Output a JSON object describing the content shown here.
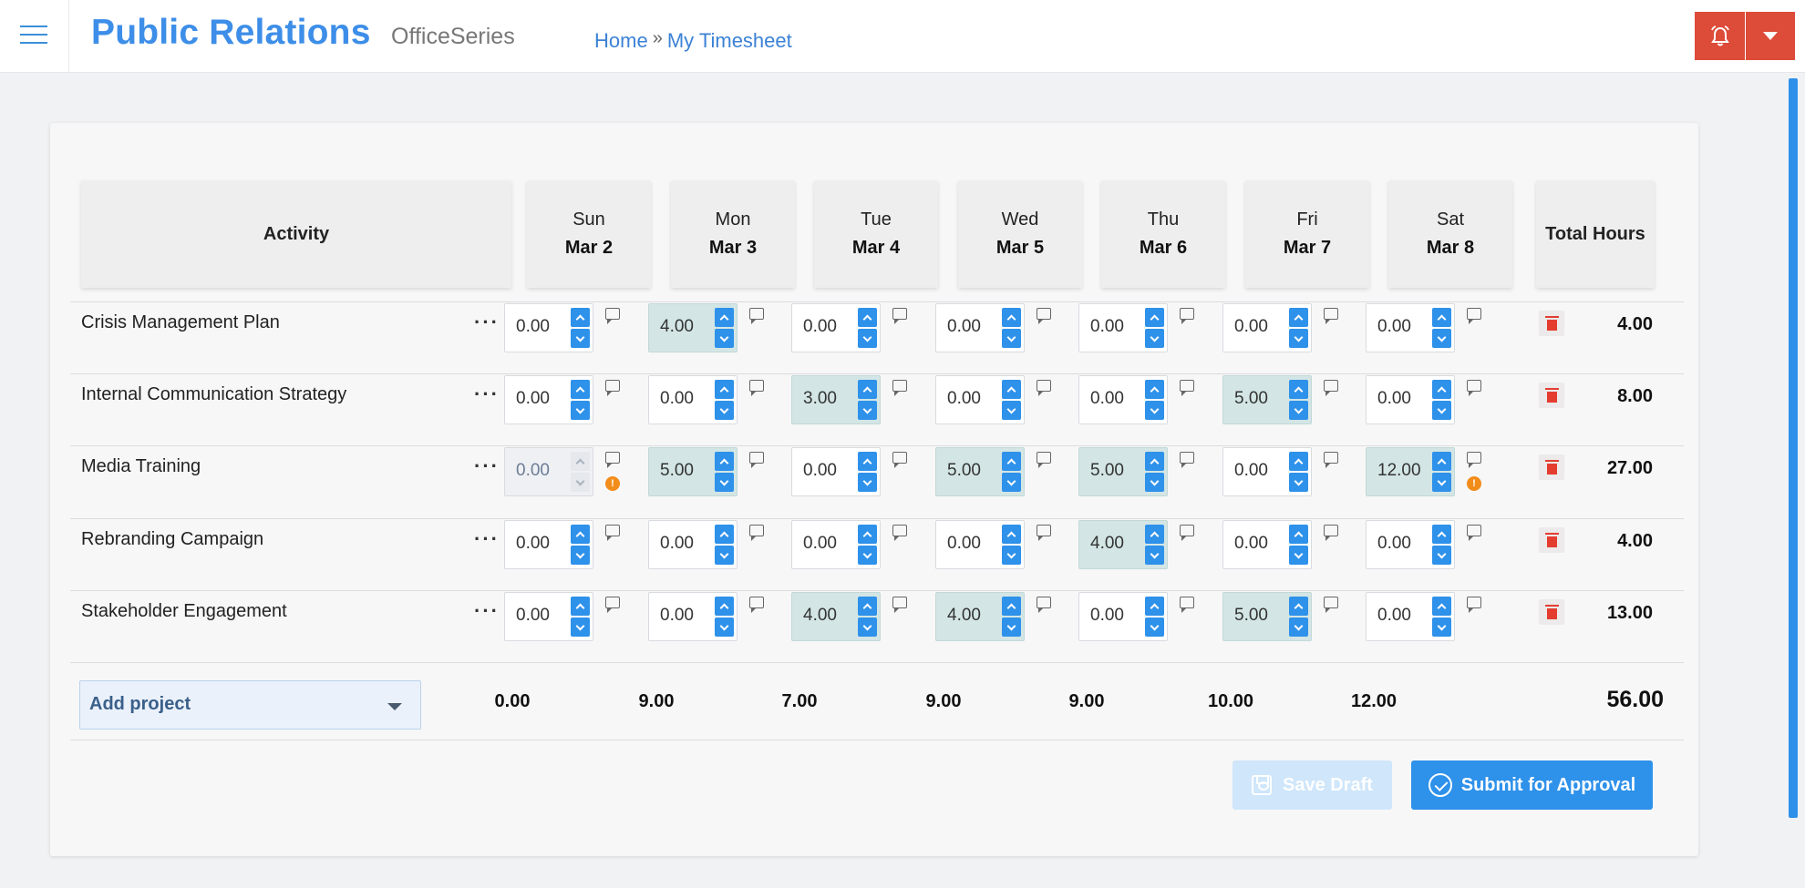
{
  "header": {
    "app_title": "Public Relations",
    "app_subtitle": "OfficeSeries",
    "breadcrumb": {
      "home": "Home",
      "separator": "»",
      "current": "My Timesheet"
    }
  },
  "table": {
    "activity_header": "Activity",
    "total_header": "Total Hours",
    "days": [
      {
        "name": "Sun",
        "date": "Mar 2"
      },
      {
        "name": "Mon",
        "date": "Mar 3"
      },
      {
        "name": "Tue",
        "date": "Mar 4"
      },
      {
        "name": "Wed",
        "date": "Mar 5"
      },
      {
        "name": "Thu",
        "date": "Mar 6"
      },
      {
        "name": "Fri",
        "date": "Mar 7"
      },
      {
        "name": "Sat",
        "date": "Mar 8"
      }
    ],
    "rows": [
      {
        "label": "Crisis Management Plan",
        "hours": [
          "0.00",
          "4.00",
          "0.00",
          "0.00",
          "0.00",
          "0.00",
          "0.00"
        ],
        "total": "4.00"
      },
      {
        "label": "Internal Communication Strategy",
        "hours": [
          "0.00",
          "0.00",
          "3.00",
          "0.00",
          "0.00",
          "5.00",
          "0.00"
        ],
        "total": "8.00"
      },
      {
        "label": "Media Training",
        "hours": [
          "0.00",
          "5.00",
          "0.00",
          "5.00",
          "5.00",
          "0.00",
          "12.00"
        ],
        "total": "27.00",
        "disabled_days": [
          0
        ],
        "warning_days": [
          0,
          6
        ]
      },
      {
        "label": "Rebranding Campaign",
        "hours": [
          "0.00",
          "0.00",
          "0.00",
          "0.00",
          "4.00",
          "0.00",
          "0.00"
        ],
        "total": "4.00"
      },
      {
        "label": "Stakeholder Engagement",
        "hours": [
          "0.00",
          "0.00",
          "4.00",
          "4.00",
          "0.00",
          "5.00",
          "0.00"
        ],
        "total": "13.00"
      }
    ],
    "row_menu_label": "···",
    "warning_symbol": "!",
    "add_project_label": "Add project",
    "column_totals": [
      "0.00",
      "9.00",
      "7.00",
      "9.00",
      "9.00",
      "10.00",
      "12.00"
    ],
    "grand_total": "56.00"
  },
  "actions": {
    "save_draft": "Save Draft",
    "submit": "Submit for Approval"
  },
  "colors": {
    "accent": "#2e91ea",
    "alert": "#dd4b39",
    "highlight_cell": "#d3e6e5",
    "delete": "#e43d30",
    "warning": "#f28c1a"
  }
}
